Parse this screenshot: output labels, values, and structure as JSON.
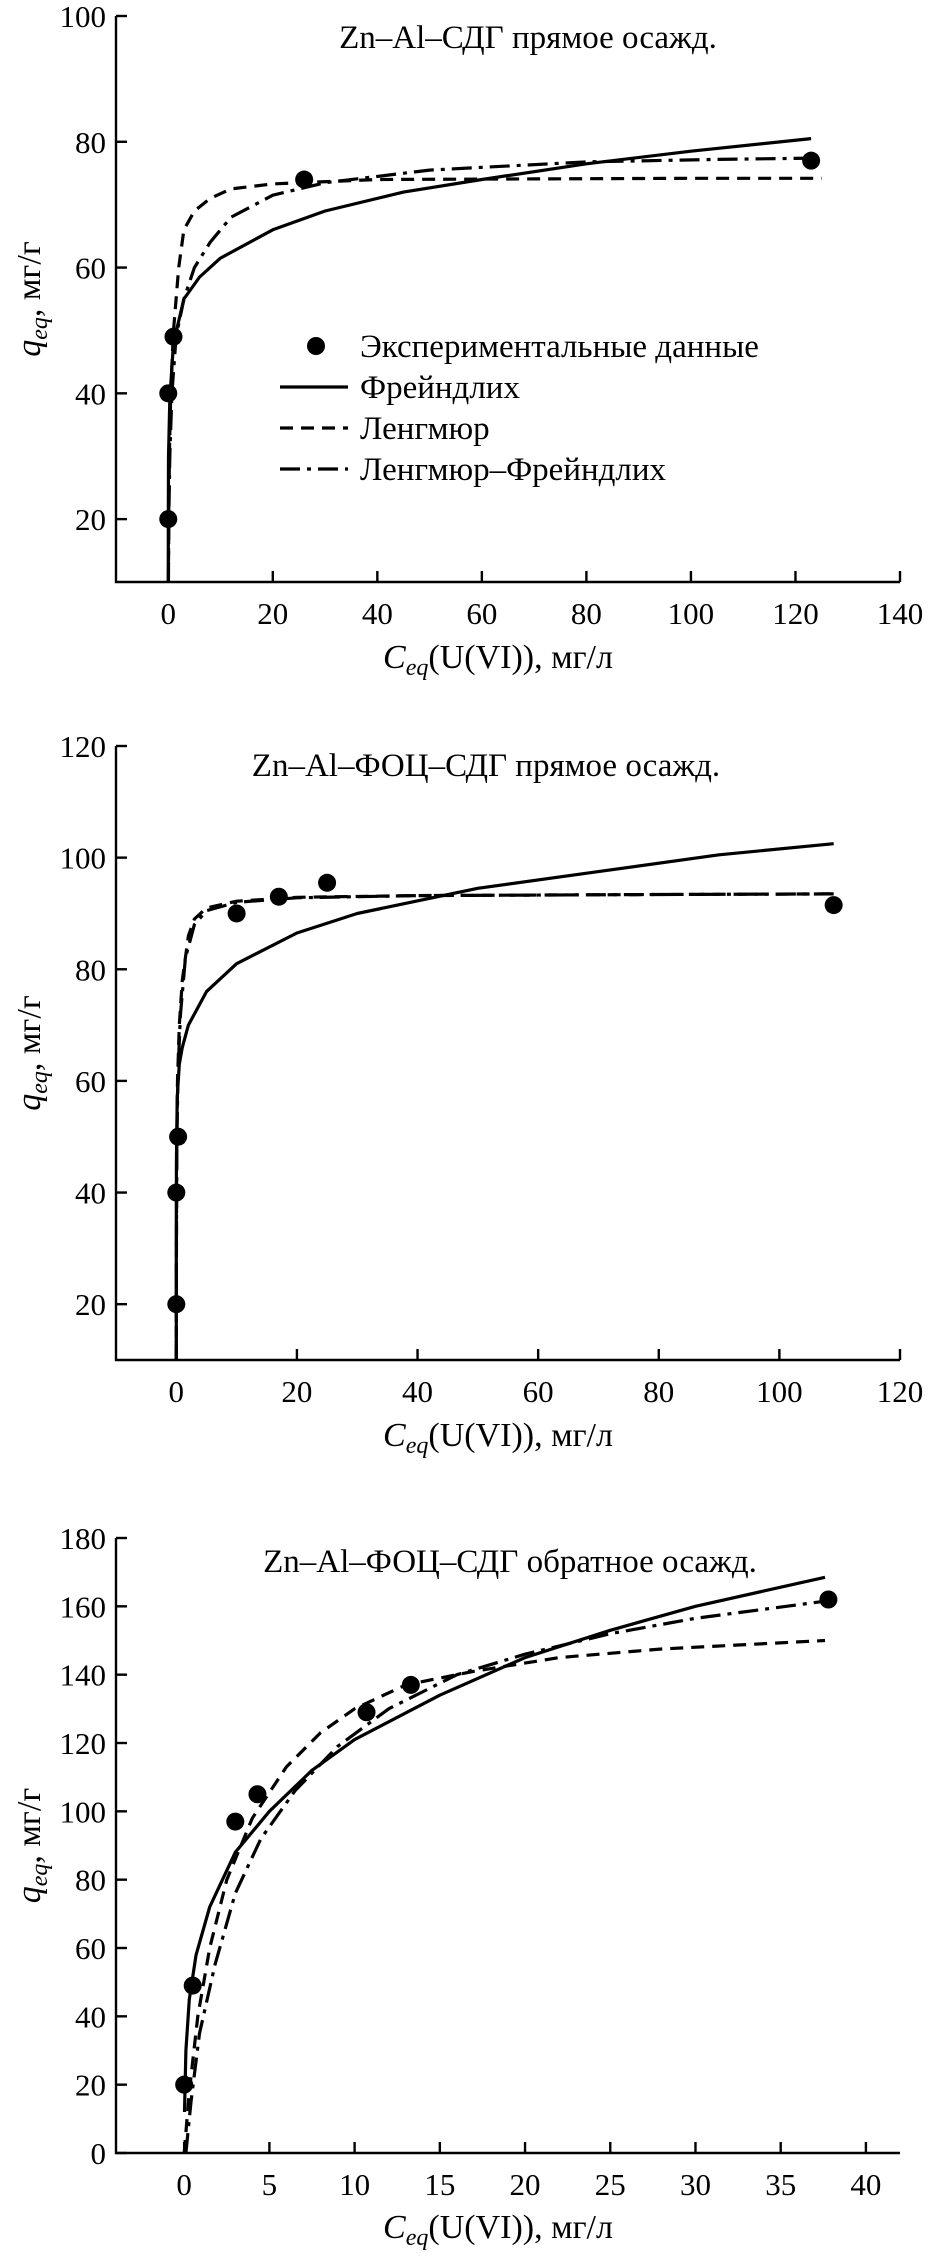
{
  "chart_data": [
    {
      "type": "scatter",
      "title": "Zn–Al–СДГ прямое осажд.",
      "xlabel_var": "C",
      "xlabel_sub": "eq",
      "xlabel_rest": "(U(VI)), мг/л",
      "ylabel_var": "q",
      "ylabel_sub": "eq",
      "ylabel_rest": ", мг/г",
      "xlim": [
        -10,
        140
      ],
      "ylim": [
        10,
        100
      ],
      "xticks": [
        0,
        20,
        40,
        60,
        80,
        100,
        120,
        140
      ],
      "yticks": [
        20,
        40,
        60,
        80,
        100
      ],
      "legend": {
        "position": "center-left",
        "entries": [
          "Экспериментальные данные",
          "Фрейндлих",
          "Ленгмюр",
          "Ленгмюр–Фрейндлих"
        ]
      },
      "points": [
        [
          0,
          20
        ],
        [
          0,
          40
        ],
        [
          1,
          49
        ],
        [
          26,
          74
        ],
        [
          123,
          77
        ]
      ],
      "curves": [
        {
          "name": "Фрейндлих",
          "style": "solid",
          "points": [
            [
              0.0005,
              10
            ],
            [
              0.005,
              19
            ],
            [
              0.05,
              30
            ],
            [
              0.3,
              39
            ],
            [
              1,
              48
            ],
            [
              3,
              55
            ],
            [
              6,
              58.5
            ],
            [
              10,
              61.5
            ],
            [
              20,
              66
            ],
            [
              30,
              69
            ],
            [
              45,
              72
            ],
            [
              60,
              74
            ],
            [
              80,
              76.5
            ],
            [
              100,
              78.5
            ],
            [
              123,
              80.5
            ]
          ]
        },
        {
          "name": "Ленгмюр",
          "style": "dashed",
          "points": [
            [
              0.02,
              10
            ],
            [
              0.1,
              22
            ],
            [
              0.25,
              32
            ],
            [
              0.5,
              41
            ],
            [
              1,
              50
            ],
            [
              2,
              60
            ],
            [
              3,
              66
            ],
            [
              5,
              69
            ],
            [
              8,
              71
            ],
            [
              12,
              72.5
            ],
            [
              20,
              73.3
            ],
            [
              40,
              74
            ],
            [
              70,
              74.1
            ],
            [
              100,
              74.2
            ],
            [
              125,
              74.2
            ]
          ]
        },
        {
          "name": "Ленгмюр–Фрейндлих",
          "style": "dashdot",
          "points": [
            [
              0.02,
              10
            ],
            [
              0.1,
              20
            ],
            [
              0.3,
              30
            ],
            [
              0.7,
              40
            ],
            [
              1.5,
              49
            ],
            [
              3,
              55
            ],
            [
              5,
              60
            ],
            [
              8,
              64
            ],
            [
              12,
              68
            ],
            [
              20,
              71.5
            ],
            [
              30,
              73.5
            ],
            [
              50,
              75.5
            ],
            [
              80,
              76.8
            ],
            [
              105,
              77.2
            ],
            [
              124,
              77.4
            ]
          ]
        }
      ]
    },
    {
      "type": "scatter",
      "title": "Zn–Al–ФОЦ–СДГ прямое осажд.",
      "xlabel_var": "C",
      "xlabel_sub": "eq",
      "xlabel_rest": "(U(VI)), мг/л",
      "ylabel_var": "q",
      "ylabel_sub": "eq",
      "ylabel_rest": ", мг/г",
      "xlim": [
        -10,
        120
      ],
      "ylim": [
        10,
        120
      ],
      "xticks": [
        0,
        20,
        40,
        60,
        80,
        100,
        120
      ],
      "yticks": [
        20,
        40,
        60,
        80,
        100,
        120
      ],
      "points": [
        [
          0,
          20
        ],
        [
          0,
          40
        ],
        [
          0.3,
          50
        ],
        [
          10,
          90
        ],
        [
          17,
          93
        ],
        [
          25,
          95.5
        ],
        [
          109,
          91.5
        ]
      ],
      "curves": [
        {
          "name": "Фрейндлих",
          "style": "solid",
          "points": [
            [
              0.0001,
              10
            ],
            [
              0.002,
              28
            ],
            [
              0.02,
              45
            ],
            [
              0.15,
              57
            ],
            [
              0.5,
              63
            ],
            [
              1,
              66
            ],
            [
              2,
              70
            ],
            [
              5,
              76
            ],
            [
              10,
              81
            ],
            [
              20,
              86.5
            ],
            [
              30,
              90
            ],
            [
              50,
              94.5
            ],
            [
              70,
              97.5
            ],
            [
              90,
              100.5
            ],
            [
              109,
              102.5
            ]
          ]
        },
        {
          "name": "Ленгмюр",
          "style": "dashed",
          "points": [
            [
              0.002,
              10
            ],
            [
              0.01,
              25
            ],
            [
              0.05,
              45
            ],
            [
              0.2,
              60
            ],
            [
              0.5,
              70
            ],
            [
              1,
              78
            ],
            [
              2,
              86
            ],
            [
              3,
              89
            ],
            [
              5,
              91
            ],
            [
              10,
              92.2
            ],
            [
              20,
              92.9
            ],
            [
              40,
              93.2
            ],
            [
              80,
              93.4
            ],
            [
              109,
              93.5
            ]
          ]
        },
        {
          "name": "Ленгмюр–Фрейндлих",
          "style": "dashdot",
          "points": [
            [
              0.002,
              10
            ],
            [
              0.02,
              30
            ],
            [
              0.1,
              50
            ],
            [
              0.3,
              62
            ],
            [
              0.7,
              72
            ],
            [
              1.5,
              82
            ],
            [
              3,
              88
            ],
            [
              5,
              90.5
            ],
            [
              10,
              92
            ],
            [
              20,
              92.8
            ],
            [
              40,
              93.2
            ],
            [
              80,
              93.4
            ],
            [
              109,
              93.5
            ]
          ]
        }
      ]
    },
    {
      "type": "scatter",
      "title": "Zn–Al–ФОЦ–СДГ обратное осажд.",
      "xlabel_var": "C",
      "xlabel_sub": "eq",
      "xlabel_rest": "(U(VI)), мг/л",
      "ylabel_var": "q",
      "ylabel_sub": "eq",
      "ylabel_rest": ", мг/г",
      "xlim": [
        -4,
        42
      ],
      "ylim": [
        0,
        180
      ],
      "xticks": [
        0,
        5,
        10,
        15,
        20,
        25,
        30,
        35,
        40
      ],
      "yticks": [
        0,
        20,
        40,
        60,
        80,
        100,
        120,
        140,
        160,
        180
      ],
      "points": [
        [
          0,
          20
        ],
        [
          0.5,
          49
        ],
        [
          3,
          97
        ],
        [
          4.3,
          105
        ],
        [
          10.7,
          129
        ],
        [
          13.3,
          137
        ],
        [
          37.8,
          162
        ]
      ],
      "curves": [
        {
          "name": "Фрейндлих",
          "style": "solid",
          "points": [
            [
              0.02,
              12
            ],
            [
              0.1,
              30
            ],
            [
              0.3,
              45
            ],
            [
              0.7,
              58
            ],
            [
              1.5,
              72
            ],
            [
              3,
              88
            ],
            [
              5,
              100
            ],
            [
              7.5,
              112
            ],
            [
              10,
              121
            ],
            [
              15,
              134
            ],
            [
              20,
              145
            ],
            [
              25,
              153
            ],
            [
              30,
              160
            ],
            [
              37.6,
              168.5
            ]
          ]
        },
        {
          "name": "Ленгмюр",
          "style": "dashed",
          "points": [
            [
              0,
              0
            ],
            [
              0.3,
              18
            ],
            [
              0.8,
              40
            ],
            [
              1.5,
              60
            ],
            [
              2.5,
              80
            ],
            [
              4,
              98
            ],
            [
              6,
              113
            ],
            [
              8,
              123
            ],
            [
              10,
              130
            ],
            [
              13,
              137
            ],
            [
              17,
              141
            ],
            [
              22,
              145
            ],
            [
              28,
              147.5
            ],
            [
              37.6,
              150
            ]
          ]
        },
        {
          "name": "Ленгмюр–Фрейндлих",
          "style": "dashdot",
          "points": [
            [
              0.1,
              0
            ],
            [
              0.4,
              15
            ],
            [
              0.9,
              35
            ],
            [
              1.8,
              55
            ],
            [
              3,
              76
            ],
            [
              4.5,
              92
            ],
            [
              6.5,
              106
            ],
            [
              9,
              119
            ],
            [
              12,
              130
            ],
            [
              16,
              140
            ],
            [
              20,
              146
            ],
            [
              25,
              152
            ],
            [
              30,
              156.5
            ],
            [
              37.6,
              161.5
            ]
          ]
        }
      ]
    }
  ]
}
